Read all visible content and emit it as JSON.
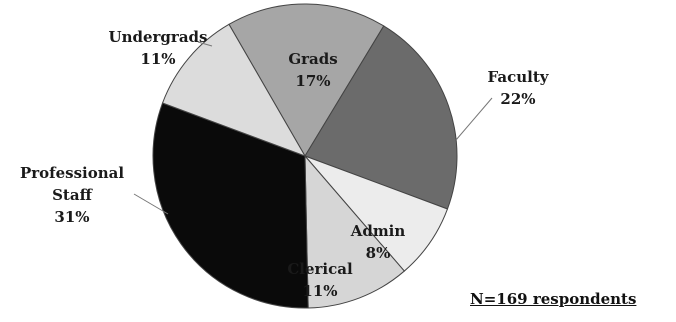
{
  "chart_data": {
    "type": "pie",
    "slices": [
      {
        "label": "Grads",
        "value": 17,
        "value_label": "17%",
        "color": "#a6a6a6"
      },
      {
        "label": "Faculty",
        "value": 22,
        "value_label": "22%",
        "color": "#6b6b6b"
      },
      {
        "label": "Admin",
        "value": 8,
        "value_label": "8%",
        "color": "#ececec"
      },
      {
        "label": "Clerical",
        "value": 11,
        "value_label": "11%",
        "color": "#d6d6d6"
      },
      {
        "label": "Professional Staff",
        "value": 31,
        "value_label": "31%",
        "color": "#0a0a0a"
      },
      {
        "label": "Undergrads",
        "value": 11,
        "value_label": "11%",
        "color": "#dcdcdc"
      }
    ],
    "note": "N=169 respondents"
  }
}
